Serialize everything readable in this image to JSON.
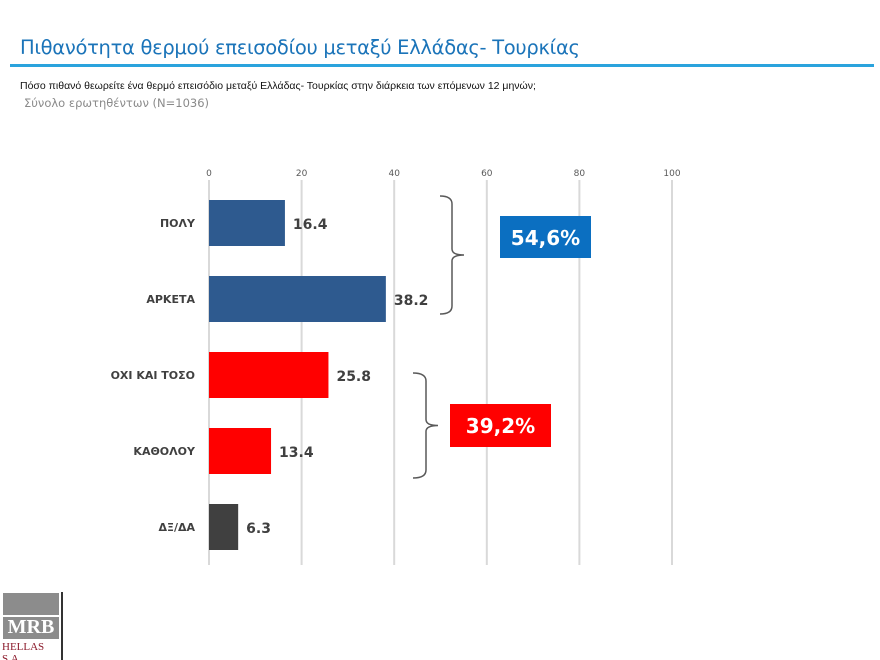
{
  "title": "Πιθανότητα θερμού επεισοδίου μεταξύ Ελλάδας- Τουρκίας",
  "question": "Πόσο πιθανό θεωρείτε ένα θερμό επεισόδιο μεταξύ Ελλάδας- Τουρκίας στην διάρκεια των επόμενων 12 μηνών;",
  "sample": "Σύνολο ερωτηθέντων (N=1036)",
  "logo": {
    "name": "MRB",
    "sub": "HELLAS S.A."
  },
  "chart_data": {
    "type": "bar",
    "orientation": "horizontal",
    "categories": [
      "ΠΟΛΥ",
      "ΑΡΚΕΤΑ",
      "ΟΧΙ ΚΑΙ ΤΟΣΟ",
      "ΚΑΘΟΛΟΥ",
      "ΔΞ/ΔΑ"
    ],
    "values": [
      16.4,
      38.2,
      25.8,
      13.4,
      6.3
    ],
    "value_labels": [
      "16.4",
      "38.2",
      "25.8",
      "13.4",
      "6.3"
    ],
    "colors": [
      "#2e5a8f",
      "#2e5a8f",
      "#ff0000",
      "#ff0000",
      "#404040"
    ],
    "xlim": [
      0,
      100
    ],
    "xticks": [
      0,
      20,
      40,
      60,
      80,
      100
    ],
    "axis_position": "top",
    "grid": true,
    "groups": [
      {
        "label": "54,6%",
        "from": 0,
        "to": 1,
        "color": "#0b6fc1"
      },
      {
        "label": "39,2%",
        "from": 2,
        "to": 3,
        "color": "#ff0000"
      }
    ]
  }
}
